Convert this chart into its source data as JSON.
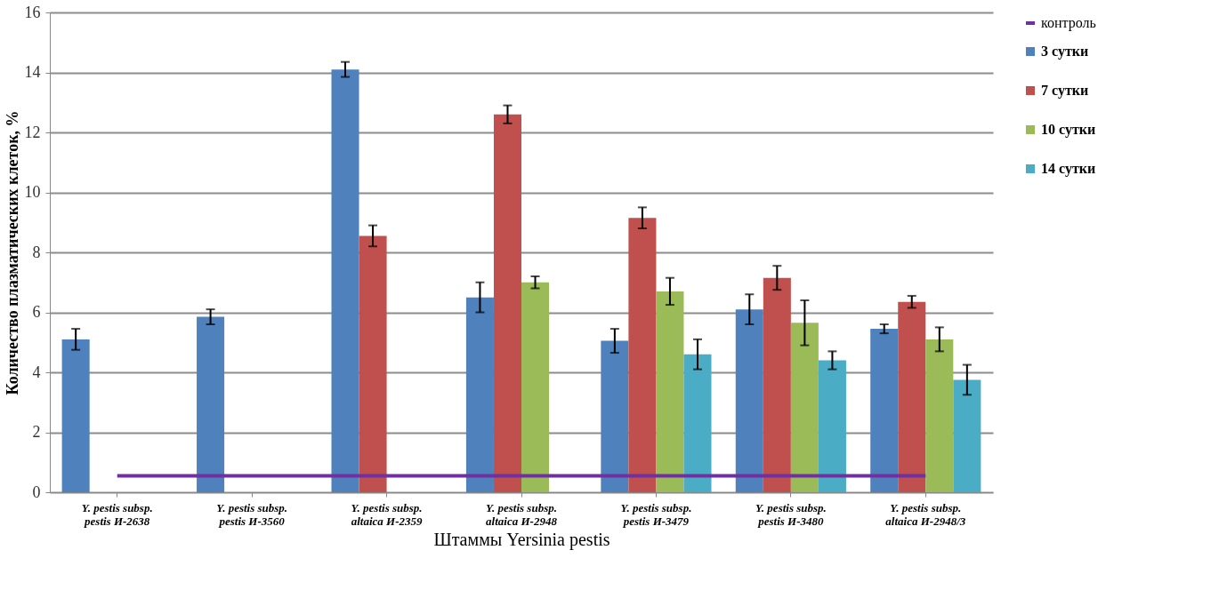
{
  "chart_data": {
    "type": "bar",
    "xlabel": "Штаммы Yersinia pestis",
    "ylabel": "Количество плазматических клеток, %",
    "categories": [
      "Y. pestis subsp. pestis И-2638",
      "Y. pestis subsp. pestis И-3560",
      "Y. pestis subsp. altaica И-2359",
      "Y. pestis subsp. altaica И-2948",
      "Y. pestis subsp. pestis И-3479",
      "Y. pestis subsp. pestis И-3480",
      "Y. pestis subsp. altaica И-2948/3"
    ],
    "series": [
      {
        "name": "3 сутки",
        "color": "#4f81bd",
        "values": [
          5.1,
          5.85,
          14.1,
          6.5,
          5.05,
          6.1,
          5.45
        ],
        "errors": [
          0.35,
          0.25,
          0.25,
          0.5,
          0.4,
          0.5,
          0.15
        ]
      },
      {
        "name": "7 сутки",
        "color": "#c0504d",
        "values": [
          null,
          null,
          8.55,
          12.6,
          9.15,
          7.15,
          6.35
        ],
        "errors": [
          null,
          null,
          0.35,
          0.3,
          0.35,
          0.4,
          0.2
        ]
      },
      {
        "name": "10 сутки",
        "color": "#9bbb59",
        "values": [
          null,
          null,
          null,
          7.0,
          6.7,
          5.65,
          5.1
        ],
        "errors": [
          null,
          null,
          null,
          0.2,
          0.45,
          0.75,
          0.4
        ]
      },
      {
        "name": "14 сутки",
        "color": "#4bacc6",
        "values": [
          null,
          null,
          null,
          null,
          4.6,
          4.4,
          3.75
        ],
        "errors": [
          null,
          null,
          null,
          null,
          0.5,
          0.3,
          0.5
        ]
      },
      {
        "name": "контроль",
        "type": "line",
        "color": "#7030a0",
        "values": [
          0.55,
          0.55,
          0.55,
          0.55,
          0.55,
          0.55,
          0.55
        ]
      }
    ],
    "ylim": [
      0,
      16
    ],
    "yticks": [
      0,
      2,
      4,
      6,
      8,
      10,
      12,
      14,
      16
    ],
    "grid": "y",
    "legend": "right"
  }
}
